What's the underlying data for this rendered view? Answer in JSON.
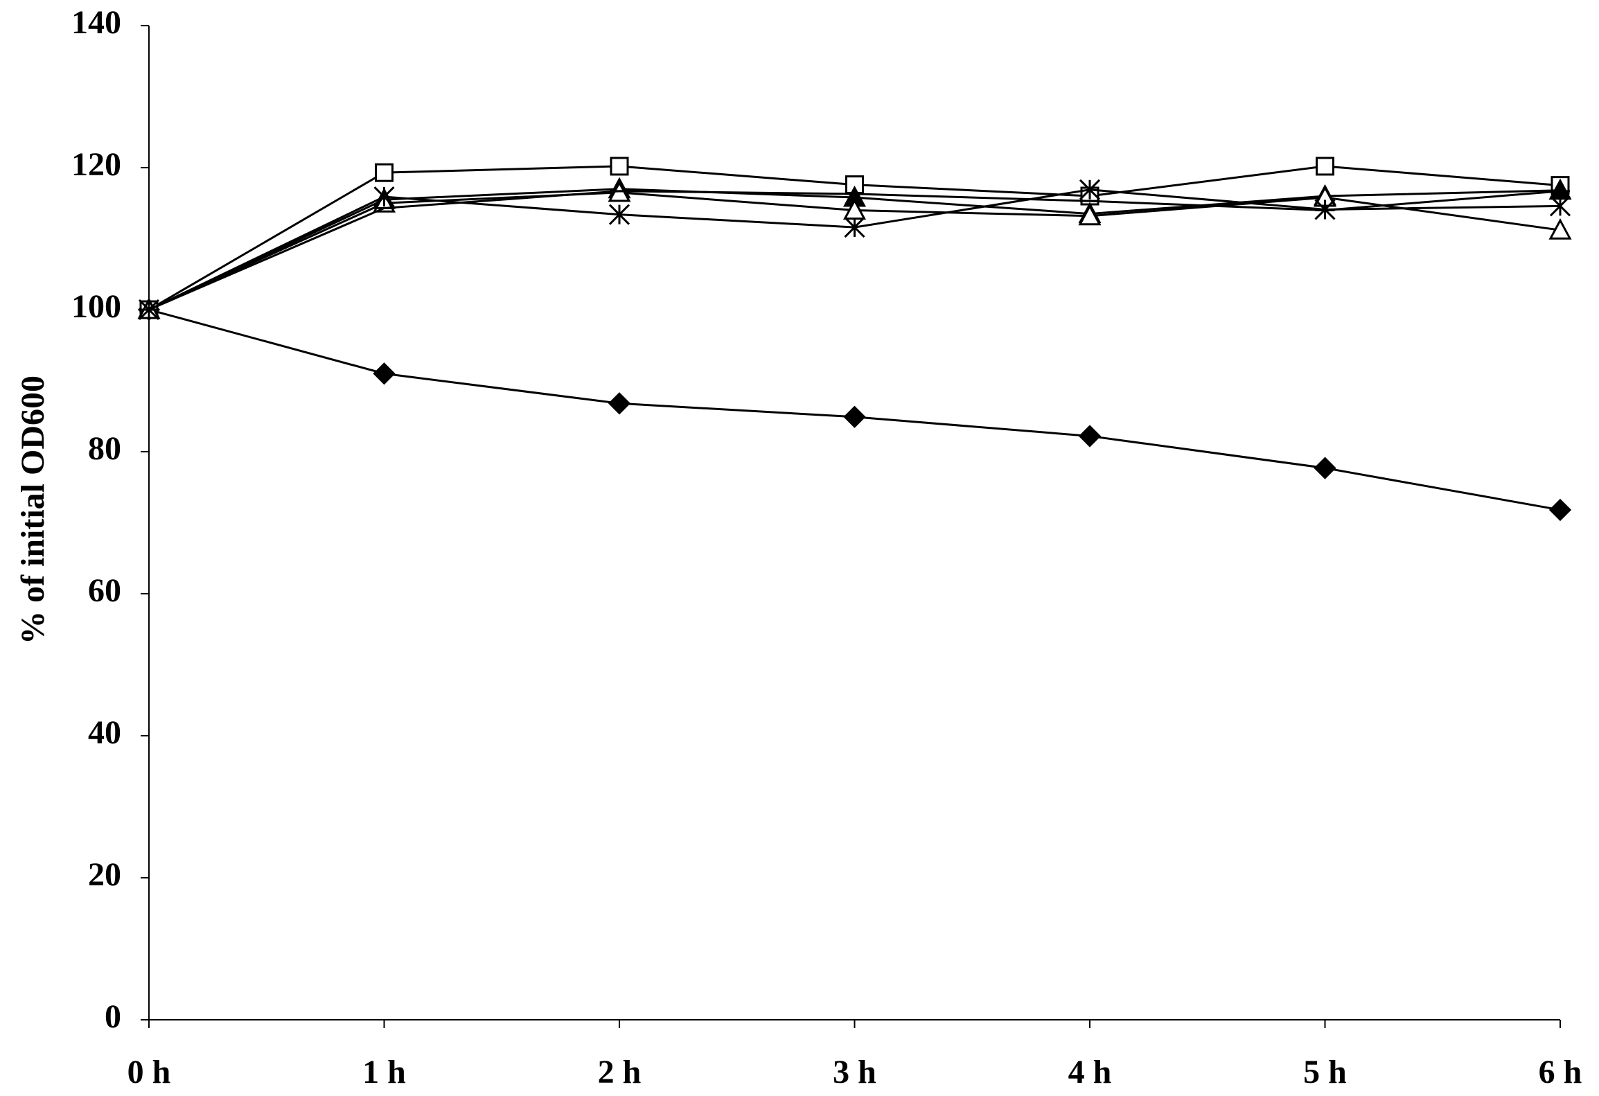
{
  "chart_data": {
    "type": "line",
    "y_label": "% of initial OD600",
    "categories": [
      "0 h",
      "1 h",
      "2 h",
      "3 h",
      "4 h",
      "5 h",
      "6 h"
    ],
    "ylim": [
      0,
      140
    ],
    "yticks": [
      0,
      20,
      40,
      60,
      80,
      100,
      120,
      140
    ],
    "grid": false,
    "series": [
      {
        "color": "#000000",
        "marker": "diamond",
        "filled": true,
        "values": [
          100,
          91,
          86.8,
          84.9,
          82.2,
          77.7,
          71.8
        ]
      },
      {
        "color": "#000000",
        "marker": "square",
        "filled": false,
        "values": [
          100,
          119.3,
          120.2,
          117.6,
          116,
          120.2,
          117.5
        ]
      },
      {
        "color": "#000000",
        "marker": "triangle",
        "filled": true,
        "values": [
          100,
          115.5,
          117,
          115.8,
          113.5,
          116,
          116.8
        ]
      },
      {
        "color": "#000000",
        "marker": "triangle",
        "filled": false,
        "values": [
          100,
          115,
          116.5,
          114,
          113.2,
          115.8,
          111.2
        ]
      },
      {
        "color": "#000000",
        "marker": "asterisk",
        "filled": false,
        "values": [
          100,
          115.9,
          113.4,
          111.6,
          116.9,
          114.1,
          114.6
        ]
      },
      {
        "color": "#000000",
        "marker": "dash",
        "filled": false,
        "values": [
          100,
          114.3,
          116.7,
          116.3,
          115.3,
          114,
          116.7
        ]
      }
    ]
  }
}
